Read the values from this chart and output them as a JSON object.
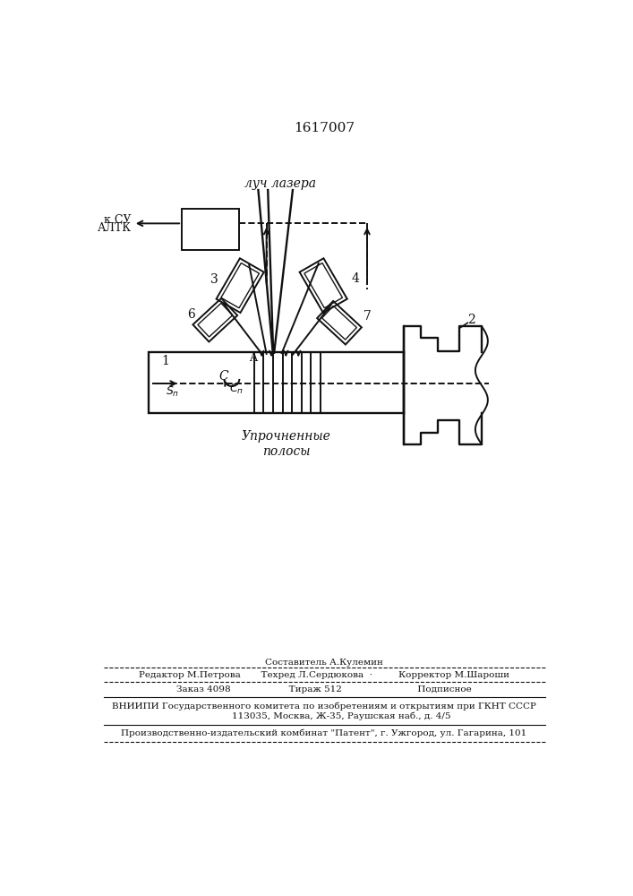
{
  "patent_number": "1617007",
  "laser_label": "луч лазера",
  "k_su_label1": "к СУ",
  "k_su_label2": "АЛТК",
  "uprochn_label": "Упрочненные\nполосы",
  "lc": "#111111",
  "footer_line1": "Составитель А.Кулемин",
  "footer_line2": "Редактор М.Петрова       Техред Л.Сердюкова  ·         Корректор М.Шароши",
  "footer_line3": "Заказ 4098                    Тираж 512                          Подписное",
  "footer_line4": "ВНИИПИ Государственного комитета по изобретениям и открытиям при ГКНТ СССР",
  "footer_line5": "            113035, Москва, Ж-35, Раушская наб., д. 4/5",
  "footer_line6": "Производственно-издательский комбинат \"Патент\", г. Ужгород, ул. Гагарина, 101"
}
